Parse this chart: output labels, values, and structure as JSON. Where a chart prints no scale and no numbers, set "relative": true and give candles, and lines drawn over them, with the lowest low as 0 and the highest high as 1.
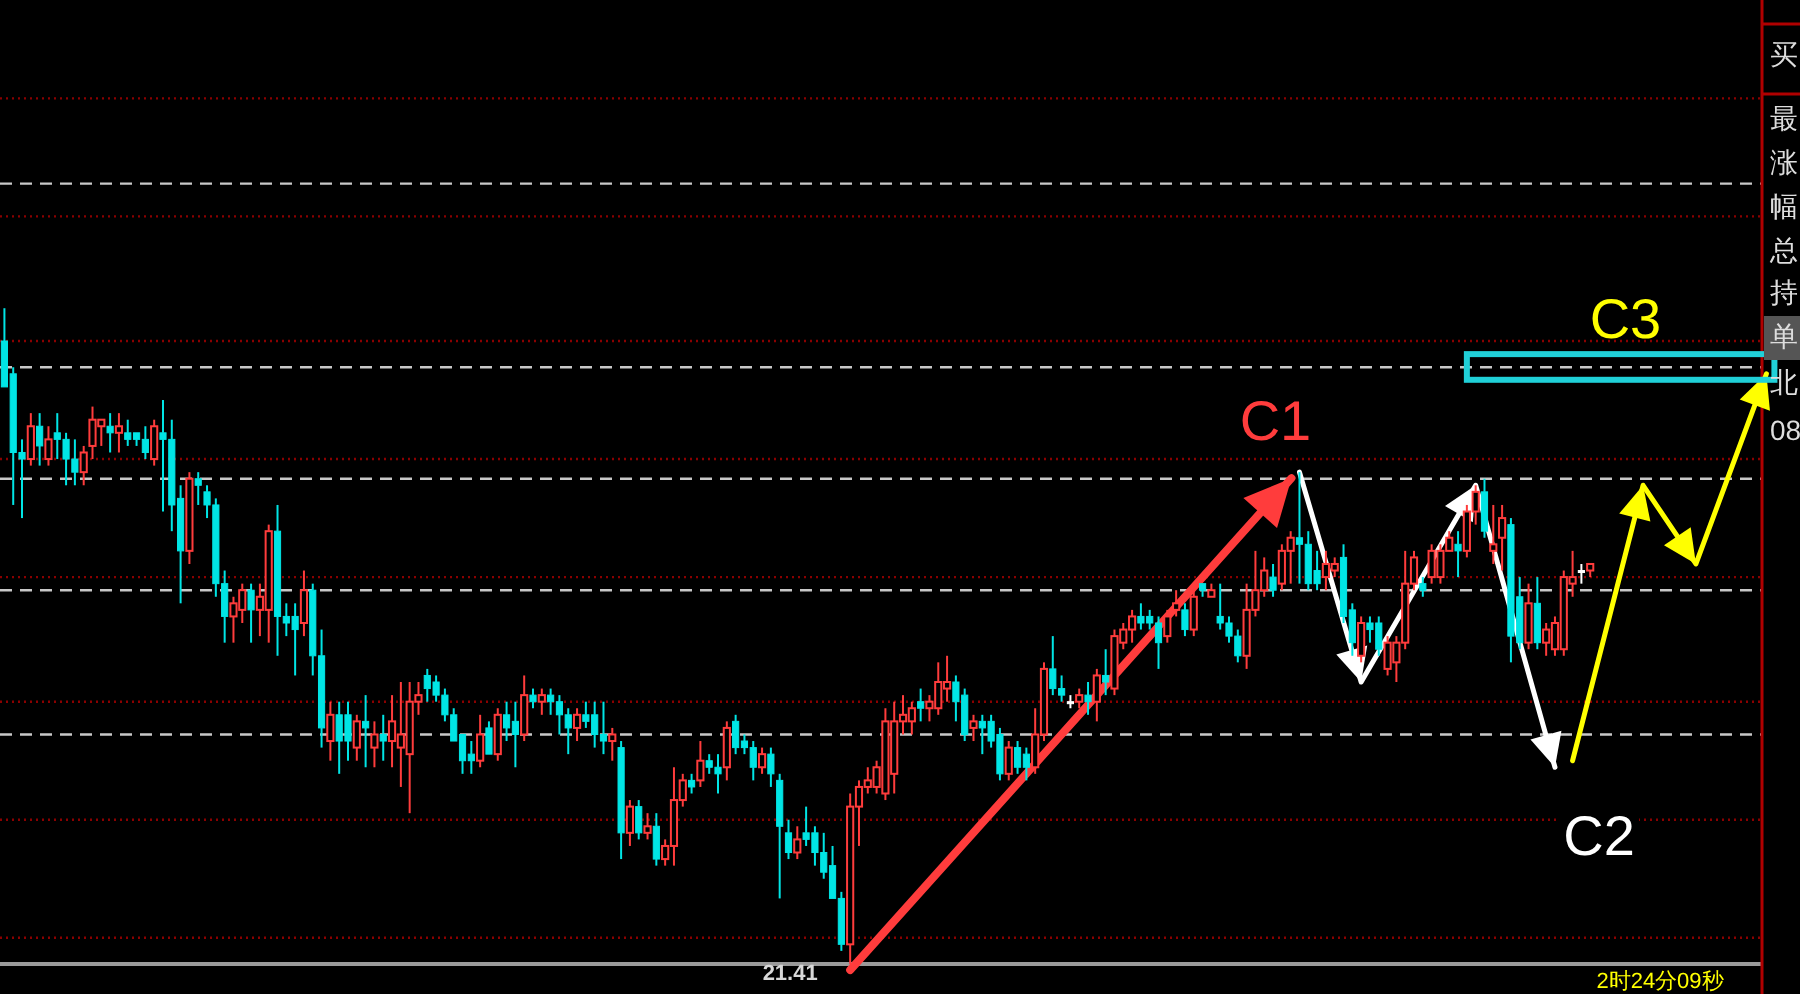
{
  "chart_data": {
    "type": "candlestick",
    "relative": true,
    "categories": [
      null,
      null,
      null,
      null,
      null,
      null,
      null,
      null,
      null,
      null,
      null,
      null,
      null,
      null,
      null,
      null,
      null,
      null,
      null,
      null,
      null,
      null,
      null,
      null,
      null,
      null,
      null,
      null,
      null,
      null,
      null,
      null,
      null,
      null,
      null,
      null,
      null,
      null,
      null,
      null,
      null,
      null,
      null,
      null,
      null,
      null,
      null,
      null,
      null,
      null,
      null,
      null,
      null,
      null,
      null,
      null,
      null,
      null,
      null,
      null,
      null,
      null,
      null,
      null,
      null,
      null,
      null,
      null,
      null,
      null,
      null,
      null,
      null,
      null,
      null,
      null,
      null,
      null,
      null,
      null,
      null,
      null,
      null,
      null,
      null,
      null,
      null,
      null,
      null,
      null,
      null,
      null,
      null,
      null,
      null,
      null,
      null,
      null,
      null,
      null,
      null,
      null,
      null,
      null,
      null,
      null,
      null,
      null,
      null,
      null,
      null,
      null,
      null,
      null,
      null,
      null,
      null,
      null,
      null,
      null,
      null,
      null,
      null,
      null,
      null,
      null,
      null,
      null,
      null,
      null,
      null,
      null,
      null,
      null,
      null,
      null,
      null,
      null,
      null,
      null,
      null,
      null,
      null,
      null,
      null,
      null,
      null,
      null,
      null,
      null,
      null,
      null,
      null,
      null,
      null,
      null,
      null,
      null,
      null,
      null,
      null,
      null,
      null,
      null,
      null,
      null,
      null,
      null,
      null,
      null,
      null,
      null,
      null,
      null,
      null,
      null,
      null,
      null,
      null,
      null,
      null,
      null,
      null,
      null,
      null,
      null,
      null,
      null,
      null,
      null,
      null,
      null,
      null,
      null,
      null,
      null,
      null,
      null,
      null,
      null
    ],
    "ohlc": [
      [
        0.95,
        1.0,
        0.88,
        0.88
      ],
      [
        0.9,
        0.91,
        0.7,
        0.78
      ],
      [
        0.78,
        0.8,
        0.68,
        0.77
      ],
      [
        0.77,
        0.84,
        0.76,
        0.82
      ],
      [
        0.82,
        0.84,
        0.76,
        0.79
      ],
      [
        0.77,
        0.82,
        0.76,
        0.8
      ],
      [
        0.81,
        0.84,
        0.77,
        0.8
      ],
      [
        0.8,
        0.81,
        0.73,
        0.77
      ],
      [
        0.77,
        0.8,
        0.73,
        0.75
      ],
      [
        0.75,
        0.79,
        0.73,
        0.78
      ],
      [
        0.79,
        0.85,
        0.77,
        0.83
      ],
      [
        0.82,
        0.83,
        0.79,
        0.83
      ],
      [
        0.82,
        0.84,
        0.78,
        0.81
      ],
      [
        0.81,
        0.84,
        0.78,
        0.82
      ],
      [
        0.81,
        0.83,
        0.79,
        0.8
      ],
      [
        0.81,
        0.81,
        0.79,
        0.8
      ],
      [
        0.8,
        0.82,
        0.77,
        0.78
      ],
      [
        0.77,
        0.83,
        0.76,
        0.82
      ],
      [
        0.81,
        0.86,
        0.69,
        0.8
      ],
      [
        0.8,
        0.83,
        0.66,
        0.7
      ],
      [
        0.71,
        0.73,
        0.55,
        0.63
      ],
      [
        0.63,
        0.75,
        0.61,
        0.74
      ],
      [
        0.74,
        0.75,
        0.7,
        0.73
      ],
      [
        0.72,
        0.73,
        0.68,
        0.7
      ],
      [
        0.7,
        0.71,
        0.56,
        0.58
      ],
      [
        0.58,
        0.6,
        0.49,
        0.53
      ],
      [
        0.53,
        0.56,
        0.49,
        0.55
      ],
      [
        0.54,
        0.58,
        0.52,
        0.57
      ],
      [
        0.57,
        0.58,
        0.49,
        0.54
      ],
      [
        0.54,
        0.58,
        0.5,
        0.56
      ],
      [
        0.54,
        0.67,
        0.49,
        0.66
      ],
      [
        0.66,
        0.7,
        0.47,
        0.53
      ],
      [
        0.53,
        0.55,
        0.5,
        0.52
      ],
      [
        0.53,
        0.55,
        0.44,
        0.51
      ],
      [
        0.52,
        0.6,
        0.5,
        0.57
      ],
      [
        0.57,
        0.58,
        0.44,
        0.47
      ],
      [
        0.47,
        0.51,
        0.33,
        0.36
      ],
      [
        0.34,
        0.4,
        0.31,
        0.38
      ],
      [
        0.38,
        0.4,
        0.29,
        0.34
      ],
      [
        0.38,
        0.4,
        0.31,
        0.34
      ],
      [
        0.33,
        0.38,
        0.31,
        0.37
      ],
      [
        0.37,
        0.41,
        0.3,
        0.36
      ],
      [
        0.33,
        0.37,
        0.3,
        0.35
      ],
      [
        0.35,
        0.38,
        0.31,
        0.34
      ],
      [
        0.34,
        0.41,
        0.3,
        0.37
      ],
      [
        0.33,
        0.43,
        0.27,
        0.35
      ],
      [
        0.32,
        0.43,
        0.23,
        0.4
      ],
      [
        0.4,
        0.43,
        0.38,
        0.41
      ],
      [
        0.44,
        0.45,
        0.4,
        0.42
      ],
      [
        0.43,
        0.44,
        0.4,
        0.41
      ],
      [
        0.41,
        0.42,
        0.37,
        0.38
      ],
      [
        0.38,
        0.39,
        0.34,
        0.34
      ],
      [
        0.35,
        0.35,
        0.29,
        0.31
      ],
      [
        0.32,
        0.34,
        0.29,
        0.31
      ],
      [
        0.31,
        0.38,
        0.3,
        0.35
      ],
      [
        0.36,
        0.37,
        0.32,
        0.32
      ],
      [
        0.32,
        0.39,
        0.31,
        0.38
      ],
      [
        0.38,
        0.4,
        0.34,
        0.36
      ],
      [
        0.37,
        0.4,
        0.3,
        0.35
      ],
      [
        0.35,
        0.44,
        0.34,
        0.41
      ],
      [
        0.41,
        0.42,
        0.39,
        0.4
      ],
      [
        0.4,
        0.42,
        0.38,
        0.41
      ],
      [
        0.41,
        0.42,
        0.38,
        0.4
      ],
      [
        0.4,
        0.41,
        0.35,
        0.38
      ],
      [
        0.38,
        0.39,
        0.32,
        0.36
      ],
      [
        0.36,
        0.39,
        0.34,
        0.38
      ],
      [
        0.38,
        0.4,
        0.36,
        0.37
      ],
      [
        0.38,
        0.4,
        0.33,
        0.35
      ],
      [
        0.35,
        0.4,
        0.32,
        0.34
      ],
      [
        0.34,
        0.36,
        0.31,
        0.35
      ],
      [
        0.33,
        0.34,
        0.16,
        0.2
      ],
      [
        0.2,
        0.25,
        0.18,
        0.24
      ],
      [
        0.24,
        0.25,
        0.19,
        0.2
      ],
      [
        0.2,
        0.23,
        0.19,
        0.21
      ],
      [
        0.21,
        0.23,
        0.15,
        0.16
      ],
      [
        0.16,
        0.19,
        0.15,
        0.18
      ],
      [
        0.18,
        0.3,
        0.15,
        0.25
      ],
      [
        0.25,
        0.29,
        0.24,
        0.28
      ],
      [
        0.28,
        0.29,
        0.26,
        0.27
      ],
      [
        0.28,
        0.34,
        0.27,
        0.31
      ],
      [
        0.31,
        0.32,
        0.29,
        0.3
      ],
      [
        0.3,
        0.32,
        0.26,
        0.29
      ],
      [
        0.3,
        0.37,
        0.28,
        0.36
      ],
      [
        0.37,
        0.38,
        0.32,
        0.33
      ],
      [
        0.34,
        0.35,
        0.32,
        0.33
      ],
      [
        0.33,
        0.34,
        0.28,
        0.3
      ],
      [
        0.3,
        0.33,
        0.29,
        0.32
      ],
      [
        0.32,
        0.33,
        0.27,
        0.29
      ],
      [
        0.28,
        0.29,
        0.1,
        0.21
      ],
      [
        0.2,
        0.22,
        0.16,
        0.17
      ],
      [
        0.17,
        0.21,
        0.16,
        0.19
      ],
      [
        0.2,
        0.24,
        0.18,
        0.19
      ],
      [
        0.2,
        0.21,
        0.15,
        0.17
      ],
      [
        0.17,
        0.2,
        0.13,
        0.14
      ],
      [
        0.15,
        0.18,
        0.1,
        0.1
      ],
      [
        0.1,
        0.11,
        0.02,
        0.03
      ],
      [
        0.03,
        0.26,
        0.0,
        0.24
      ],
      [
        0.24,
        0.28,
        0.18,
        0.27
      ],
      [
        0.27,
        0.3,
        0.26,
        0.28
      ],
      [
        0.27,
        0.31,
        0.26,
        0.3
      ],
      [
        0.26,
        0.39,
        0.25,
        0.37
      ],
      [
        0.29,
        0.4,
        0.26,
        0.37
      ],
      [
        0.37,
        0.41,
        0.35,
        0.38
      ],
      [
        0.37,
        0.4,
        0.35,
        0.39
      ],
      [
        0.4,
        0.42,
        0.37,
        0.39
      ],
      [
        0.39,
        0.41,
        0.37,
        0.4
      ],
      [
        0.39,
        0.46,
        0.38,
        0.43
      ],
      [
        0.42,
        0.47,
        0.4,
        0.43
      ],
      [
        0.43,
        0.44,
        0.37,
        0.4
      ],
      [
        0.41,
        0.42,
        0.34,
        0.35
      ],
      [
        0.36,
        0.38,
        0.34,
        0.37
      ],
      [
        0.37,
        0.38,
        0.32,
        0.36
      ],
      [
        0.37,
        0.38,
        0.33,
        0.34
      ],
      [
        0.35,
        0.36,
        0.28,
        0.29
      ],
      [
        0.29,
        0.34,
        0.28,
        0.33
      ],
      [
        0.33,
        0.34,
        0.29,
        0.3
      ],
      [
        0.32,
        0.33,
        0.28,
        0.3
      ],
      [
        0.3,
        0.39,
        0.29,
        0.35
      ],
      [
        0.35,
        0.46,
        0.34,
        0.45
      ],
      [
        0.45,
        0.5,
        0.41,
        0.42
      ],
      [
        0.42,
        0.44,
        0.4,
        0.41
      ],
      [
        0.4,
        0.41,
        0.39,
        0.4
      ],
      [
        0.4,
        0.42,
        0.39,
        0.41
      ],
      [
        0.41,
        0.43,
        0.38,
        0.4
      ],
      [
        0.4,
        0.45,
        0.37,
        0.44
      ],
      [
        0.44,
        0.48,
        0.41,
        0.43
      ],
      [
        0.42,
        0.51,
        0.41,
        0.5
      ],
      [
        0.49,
        0.52,
        0.48,
        0.51
      ],
      [
        0.51,
        0.54,
        0.49,
        0.53
      ],
      [
        0.53,
        0.55,
        0.51,
        0.52
      ],
      [
        0.53,
        0.54,
        0.51,
        0.52
      ],
      [
        0.52,
        0.53,
        0.45,
        0.49
      ],
      [
        0.5,
        0.54,
        0.49,
        0.53
      ],
      [
        0.54,
        0.57,
        0.53,
        0.55
      ],
      [
        0.54,
        0.55,
        0.5,
        0.51
      ],
      [
        0.51,
        0.57,
        0.5,
        0.56
      ],
      [
        0.58,
        0.58,
        0.56,
        0.57
      ],
      [
        0.56,
        0.58,
        0.56,
        0.57
      ],
      [
        0.53,
        0.58,
        0.51,
        0.52
      ],
      [
        0.52,
        0.53,
        0.49,
        0.5
      ],
      [
        0.5,
        0.51,
        0.46,
        0.47
      ],
      [
        0.47,
        0.58,
        0.45,
        0.54
      ],
      [
        0.54,
        0.63,
        0.53,
        0.57
      ],
      [
        0.57,
        0.62,
        0.56,
        0.6
      ],
      [
        0.59,
        0.61,
        0.56,
        0.57
      ],
      [
        0.58,
        0.64,
        0.57,
        0.63
      ],
      [
        0.63,
        0.66,
        0.58,
        0.65
      ],
      [
        0.65,
        0.75,
        0.58,
        0.64
      ],
      [
        0.64,
        0.66,
        0.57,
        0.58
      ],
      [
        0.6,
        0.63,
        0.57,
        0.58
      ],
      [
        0.59,
        0.63,
        0.57,
        0.61
      ],
      [
        0.6,
        0.62,
        0.59,
        0.61
      ],
      [
        0.62,
        0.64,
        0.52,
        0.53
      ],
      [
        0.54,
        0.55,
        0.47,
        0.49
      ],
      [
        0.47,
        0.53,
        0.46,
        0.52
      ],
      [
        0.52,
        0.53,
        0.49,
        0.51
      ],
      [
        0.52,
        0.53,
        0.47,
        0.48
      ],
      [
        0.45,
        0.5,
        0.44,
        0.49
      ],
      [
        0.46,
        0.5,
        0.43,
        0.49
      ],
      [
        0.49,
        0.63,
        0.48,
        0.58
      ],
      [
        0.58,
        0.63,
        0.57,
        0.62
      ],
      [
        0.58,
        0.59,
        0.56,
        0.57
      ],
      [
        0.59,
        0.64,
        0.58,
        0.63
      ],
      [
        0.59,
        0.64,
        0.58,
        0.63
      ],
      [
        0.63,
        0.66,
        0.63,
        0.65
      ],
      [
        0.64,
        0.66,
        0.59,
        0.63
      ],
      [
        0.63,
        0.7,
        0.62,
        0.69
      ],
      [
        0.69,
        0.73,
        0.67,
        0.72
      ],
      [
        0.72,
        0.74,
        0.65,
        0.66
      ],
      [
        0.63,
        0.7,
        0.61,
        0.64
      ],
      [
        0.65,
        0.7,
        0.6,
        0.68
      ],
      [
        0.67,
        0.68,
        0.46,
        0.5
      ],
      [
        0.56,
        0.59,
        0.48,
        0.49
      ],
      [
        0.49,
        0.58,
        0.48,
        0.55
      ],
      [
        0.55,
        0.59,
        0.48,
        0.49
      ],
      [
        0.49,
        0.52,
        0.47,
        0.51
      ],
      [
        0.48,
        0.53,
        0.47,
        0.52
      ],
      [
        0.48,
        0.6,
        0.47,
        0.59
      ],
      [
        0.58,
        0.63,
        0.56,
        0.59
      ],
      [
        0.6,
        0.61,
        0.58,
        0.6
      ],
      [
        0.6,
        0.61,
        0.59,
        0.61
      ],
      null,
      null,
      null,
      null,
      null,
      null,
      null,
      null,
      null,
      null,
      null,
      null,
      null,
      null,
      null,
      null,
      null,
      null,
      null
    ],
    "ref_lines": [
      {
        "axis": "y",
        "value": 1.32,
        "color": "#8b0000",
        "line_style": "dotted"
      },
      {
        "axis": "y",
        "value": 1.19,
        "color": "#c8c8c8",
        "line_style": "dashed"
      },
      {
        "axis": "y",
        "value": 1.14,
        "color": "#8b0000",
        "line_style": "dotted"
      },
      {
        "axis": "y",
        "value": 0.95,
        "color": "#8b0000",
        "line_style": "dotted"
      },
      {
        "axis": "y",
        "value": 0.91,
        "color": "#c8c8c8",
        "line_style": "dashed"
      },
      {
        "axis": "y",
        "value": 0.77,
        "color": "#8b0000",
        "line_style": "dotted"
      },
      {
        "axis": "y",
        "value": 0.74,
        "color": "#c8c8c8",
        "line_style": "dashed"
      },
      {
        "axis": "y",
        "value": 0.59,
        "color": "#8b0000",
        "line_style": "dotted"
      },
      {
        "axis": "y",
        "value": 0.57,
        "color": "#c8c8c8",
        "line_style": "dashed"
      },
      {
        "axis": "y",
        "value": 0.4,
        "color": "#8b0000",
        "line_style": "dotted"
      },
      {
        "axis": "y",
        "value": 0.35,
        "color": "#c8c8c8",
        "line_style": "dashed"
      },
      {
        "axis": "y",
        "value": 0.22,
        "color": "#8b0000",
        "line_style": "dotted"
      },
      {
        "axis": "y",
        "value": 0.04,
        "color": "#8b0000",
        "line_style": "dotted"
      }
    ],
    "annotations": [
      "21.41",
      "C1",
      "C2",
      "C3",
      "买",
      "最",
      "涨",
      "幅",
      "总",
      "持",
      "单",
      "北",
      "08",
      "2时24分09秒"
    ]
  }
}
